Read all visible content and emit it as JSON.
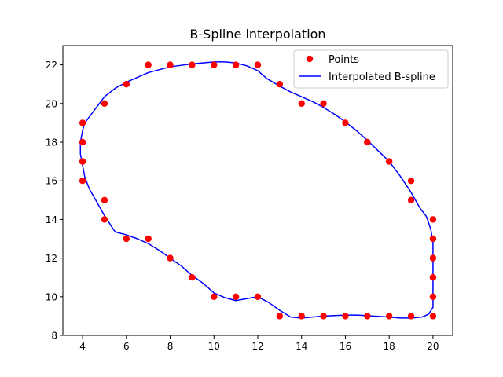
{
  "chart_data": {
    "type": "scatter",
    "title": "B-Spline interpolation",
    "xlabel": "",
    "ylabel": "",
    "xlim": [
      3.1,
      20.9
    ],
    "ylim": [
      8,
      23
    ],
    "xticks": [
      4,
      6,
      8,
      10,
      12,
      14,
      16,
      18,
      20
    ],
    "yticks": [
      8,
      10,
      12,
      14,
      16,
      18,
      20,
      22
    ],
    "grid": false,
    "legend_position": "top-right",
    "series": [
      {
        "name": "Points",
        "kind": "markers",
        "color": "#ff0000",
        "x": [
          7,
          8,
          9,
          10,
          11,
          12,
          13,
          14,
          15,
          16,
          17,
          18,
          19,
          19,
          20,
          20,
          20,
          20,
          20,
          20,
          19,
          18,
          17,
          16,
          15,
          14,
          13,
          12,
          11,
          10,
          9,
          8,
          7,
          6,
          5,
          5,
          4,
          4,
          4,
          4,
          5,
          6
        ],
        "y": [
          22,
          22,
          22,
          22,
          22,
          22,
          21,
          20,
          20,
          19,
          18,
          17,
          16,
          15,
          14,
          13,
          12,
          11,
          10,
          9,
          9,
          9,
          9,
          9,
          9,
          9,
          9,
          10,
          10,
          10,
          11,
          12,
          13,
          13,
          14,
          15,
          16,
          17,
          18,
          19,
          20,
          21
        ]
      },
      {
        "name": "Interpolated B-spline",
        "kind": "line",
        "color": "#0000ff",
        "x": [
          6.0,
          7.0,
          8.0,
          9.0,
          10.0,
          10.5,
          11.0,
          11.5,
          12.0,
          12.4,
          13.0,
          13.5,
          14.0,
          14.5,
          15.0,
          15.5,
          16.0,
          16.5,
          17.0,
          17.5,
          18.0,
          18.5,
          19.0,
          19.4,
          19.7,
          19.9,
          20.0,
          20.0,
          20.0,
          20.0,
          20.0,
          19.8,
          19.5,
          19.0,
          18.5,
          18.0,
          17.0,
          16.5,
          16.0,
          15.0,
          14.5,
          14.0,
          13.5,
          13.0,
          12.5,
          12.0,
          11.5,
          11.0,
          10.5,
          10.0,
          9.5,
          9.0,
          8.5,
          8.0,
          7.5,
          7.0,
          6.5,
          6.0,
          5.5,
          5.4,
          5.0,
          4.6,
          4.3,
          4.1,
          4.0,
          3.9,
          3.9,
          4.0,
          4.1,
          4.5,
          5.0,
          5.5,
          6.0
        ],
        "y": [
          21.1,
          21.6,
          21.9,
          22.05,
          22.15,
          22.15,
          22.1,
          21.95,
          21.7,
          21.3,
          20.9,
          20.6,
          20.35,
          20.1,
          19.8,
          19.45,
          19.05,
          18.6,
          18.1,
          17.55,
          17.0,
          16.25,
          15.4,
          14.6,
          14.15,
          13.5,
          12.8,
          11.5,
          10.2,
          9.5,
          9.45,
          9.1,
          8.95,
          8.9,
          8.9,
          8.95,
          9.02,
          9.05,
          9.05,
          9.0,
          8.95,
          8.9,
          8.95,
          9.3,
          9.7,
          10.0,
          9.9,
          9.8,
          9.95,
          10.2,
          10.7,
          11.1,
          11.6,
          12.0,
          12.4,
          12.75,
          13.0,
          13.2,
          13.35,
          13.5,
          14.2,
          15.0,
          15.6,
          16.2,
          16.8,
          17.4,
          18.0,
          18.6,
          19.0,
          19.6,
          20.35,
          20.8,
          21.1
        ]
      }
    ]
  }
}
